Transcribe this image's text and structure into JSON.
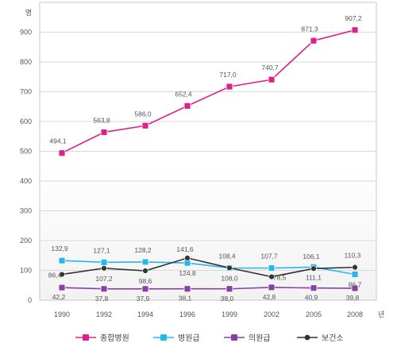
{
  "chart_data": {
    "type": "line",
    "title": "",
    "xlabel": "",
    "ylabel": "",
    "y_unit": "명",
    "x_unit": "년",
    "x": [
      "1990",
      "1992",
      "1994",
      "1996",
      "1999",
      "2002",
      "2005",
      "2008"
    ],
    "ylim": [
      0,
      1000
    ],
    "yticks": [
      0,
      100,
      200,
      300,
      400,
      500,
      600,
      700,
      800,
      900
    ],
    "grid": true,
    "legend_position": "bottom",
    "series": [
      {
        "name": "종합병원",
        "color": "#e0208a",
        "marker": "square",
        "values": [
          494.1,
          563.8,
          586.0,
          652.4,
          717.0,
          740.7,
          871.3,
          907.2
        ],
        "labels": [
          "494,1",
          "563,8",
          "586,0",
          "652,4",
          "717,0",
          "740,7",
          "871,3",
          "907,2"
        ]
      },
      {
        "name": "병원급",
        "color": "#29b6e8",
        "marker": "square",
        "values": [
          132.9,
          127.1,
          128.2,
          124.8,
          108.0,
          107.7,
          111.1,
          86.7
        ],
        "labels": [
          "132,9",
          "127,1",
          "128,2",
          "124,8",
          "108,0",
          "107,7",
          "111,1",
          "86,7"
        ]
      },
      {
        "name": "의원급",
        "color": "#8b3ea6",
        "marker": "square",
        "values": [
          42.2,
          37.8,
          37.9,
          38.1,
          38.0,
          42.8,
          40.9,
          39.8
        ],
        "labels": [
          "42,2",
          "37,8",
          "37,9",
          "38,1",
          "38,0",
          "42,8",
          "40,9",
          "39,8"
        ]
      },
      {
        "name": "보건소",
        "color": "#333333",
        "marker": "circle",
        "values": [
          86.4,
          107.2,
          98.6,
          141.6,
          108.4,
          78.5,
          106.1,
          110.3
        ],
        "labels": [
          "86,4",
          "107,2",
          "98,6",
          "141,6",
          "108,4",
          "78,5",
          "106,1",
          "110,3"
        ]
      }
    ]
  }
}
